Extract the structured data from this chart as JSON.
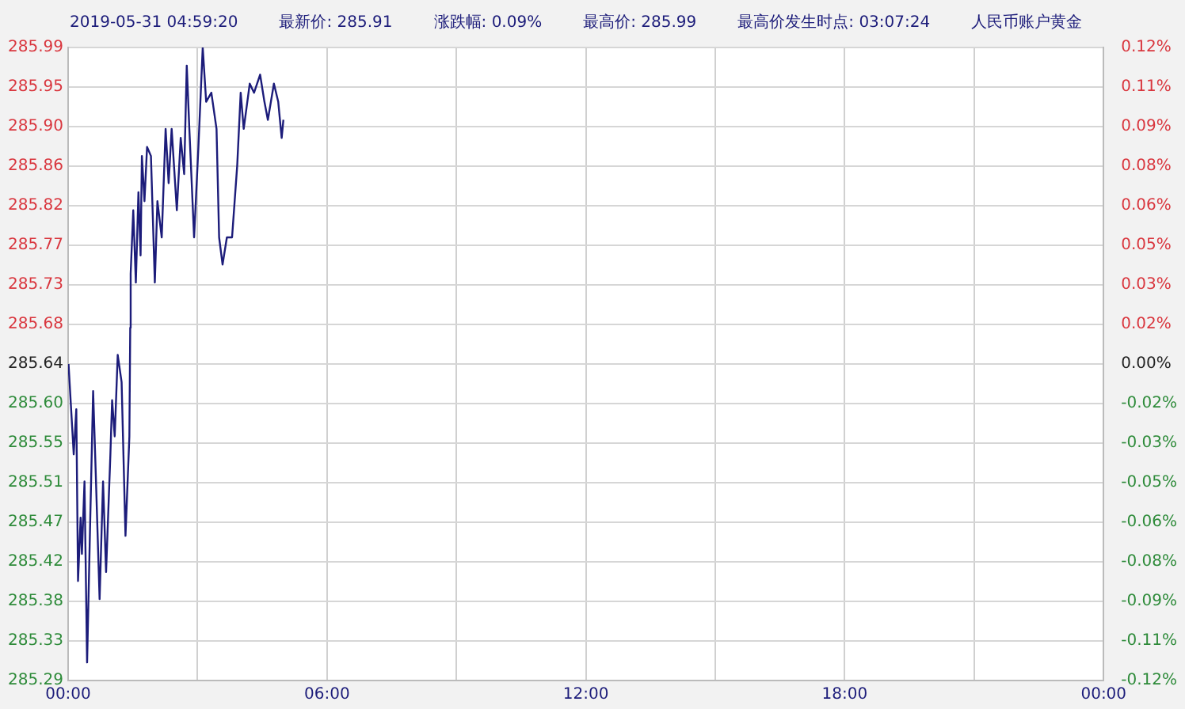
{
  "chart_data": {
    "type": "line",
    "annotations": [
      "2019-05-31 04:59:20",
      "最新价: 285.91",
      "涨跌幅: 0.09%",
      "最高价: 285.99",
      "最高价发生时点: 03:07:24",
      "人民币账户黄金"
    ],
    "x": [
      0.01,
      0.13,
      0.19,
      0.23,
      0.29,
      0.32,
      0.38,
      0.44,
      0.5,
      0.58,
      0.64,
      0.73,
      0.81,
      0.88,
      0.98,
      1.02,
      1.08,
      1.15,
      1.24,
      1.33,
      1.42,
      1.44,
      1.45,
      1.51,
      1.57,
      1.63,
      1.68,
      1.71,
      1.77,
      1.83,
      1.92,
      2.01,
      2.07,
      2.17,
      2.26,
      2.33,
      2.4,
      2.52,
      2.61,
      2.69,
      2.75,
      2.81,
      2.92,
      3.02,
      3.12,
      3.2,
      3.32,
      3.44,
      3.5,
      3.58,
      3.68,
      3.8,
      3.92,
      4.0,
      4.07,
      4.21,
      4.31,
      4.45,
      4.55,
      4.63,
      4.77,
      4.87,
      4.95,
      4.99
    ],
    "series": [
      {
        "color": "#1c1c7a",
        "values": [
          285.64,
          285.54,
          285.59,
          285.4,
          285.47,
          285.43,
          285.51,
          285.31,
          285.44,
          285.61,
          285.52,
          285.38,
          285.51,
          285.41,
          285.54,
          285.6,
          285.56,
          285.65,
          285.62,
          285.45,
          285.56,
          285.68,
          285.74,
          285.81,
          285.73,
          285.83,
          285.76,
          285.87,
          285.82,
          285.88,
          285.87,
          285.73,
          285.82,
          285.78,
          285.9,
          285.84,
          285.9,
          285.81,
          285.89,
          285.85,
          285.97,
          285.9,
          285.78,
          285.88,
          285.99,
          285.93,
          285.94,
          285.9,
          285.78,
          285.75,
          285.78,
          285.78,
          285.86,
          285.94,
          285.9,
          285.95,
          285.94,
          285.96,
          285.93,
          285.91,
          285.95,
          285.93,
          285.89,
          285.91
        ]
      }
    ],
    "xlim": [
      0,
      24
    ],
    "xticks": [
      {
        "value": 0,
        "label": "00:00"
      },
      {
        "value": 3,
        "label": null
      },
      {
        "value": 6,
        "label": "06:00"
      },
      {
        "value": 9,
        "label": null
      },
      {
        "value": 12,
        "label": "12:00"
      },
      {
        "value": 15,
        "label": null
      },
      {
        "value": 18,
        "label": "18:00"
      },
      {
        "value": 21,
        "label": null
      },
      {
        "value": 24,
        "label": "00:00"
      }
    ],
    "ylim": [
      285.29,
      285.99
    ],
    "yticks": [
      {
        "value": 285.29,
        "label": "285.29"
      },
      {
        "value": 285.33375,
        "label": "285.33"
      },
      {
        "value": 285.3775,
        "label": "285.38"
      },
      {
        "value": 285.42125,
        "label": "285.42"
      },
      {
        "value": 285.465,
        "label": "285.47"
      },
      {
        "value": 285.50875,
        "label": "285.51"
      },
      {
        "value": 285.5525,
        "label": "285.55"
      },
      {
        "value": 285.59625,
        "label": "285.60"
      },
      {
        "value": 285.64,
        "label": "285.64"
      },
      {
        "value": 285.68375,
        "label": "285.68"
      },
      {
        "value": 285.7275,
        "label": "285.73"
      },
      {
        "value": 285.77125,
        "label": "285.77"
      },
      {
        "value": 285.815,
        "label": "285.82"
      },
      {
        "value": 285.85875,
        "label": "285.86"
      },
      {
        "value": 285.9025,
        "label": "285.90"
      },
      {
        "value": 285.94625,
        "label": "285.95"
      },
      {
        "value": 285.99,
        "label": "285.99"
      }
    ],
    "y2lim": [
      -0.1225,
      0.1225
    ],
    "y2ticks": [
      {
        "value": -0.1225,
        "label": "-0.12%"
      },
      {
        "value": -0.1072,
        "label": "-0.11%"
      },
      {
        "value": -0.0919,
        "label": "-0.09%"
      },
      {
        "value": -0.0766,
        "label": "-0.08%"
      },
      {
        "value": -0.0613,
        "label": "-0.06%"
      },
      {
        "value": -0.0459,
        "label": "-0.05%"
      },
      {
        "value": -0.0306,
        "label": "-0.03%"
      },
      {
        "value": -0.0153,
        "label": "-0.02%"
      },
      {
        "value": 0,
        "label": "0.00%"
      },
      {
        "value": 0.0153,
        "label": "0.02%"
      },
      {
        "value": 0.0306,
        "label": "0.03%"
      },
      {
        "value": 0.0459,
        "label": "0.05%"
      },
      {
        "value": 0.0613,
        "label": "0.06%"
      },
      {
        "value": 0.0766,
        "label": "0.08%"
      },
      {
        "value": 0.0919,
        "label": "0.09%"
      },
      {
        "value": 0.1072,
        "label": "0.11%"
      },
      {
        "value": 0.1225,
        "label": "0.12%"
      }
    ],
    "grid": true,
    "legend": false,
    "marker": "none",
    "line_style": "solid"
  }
}
